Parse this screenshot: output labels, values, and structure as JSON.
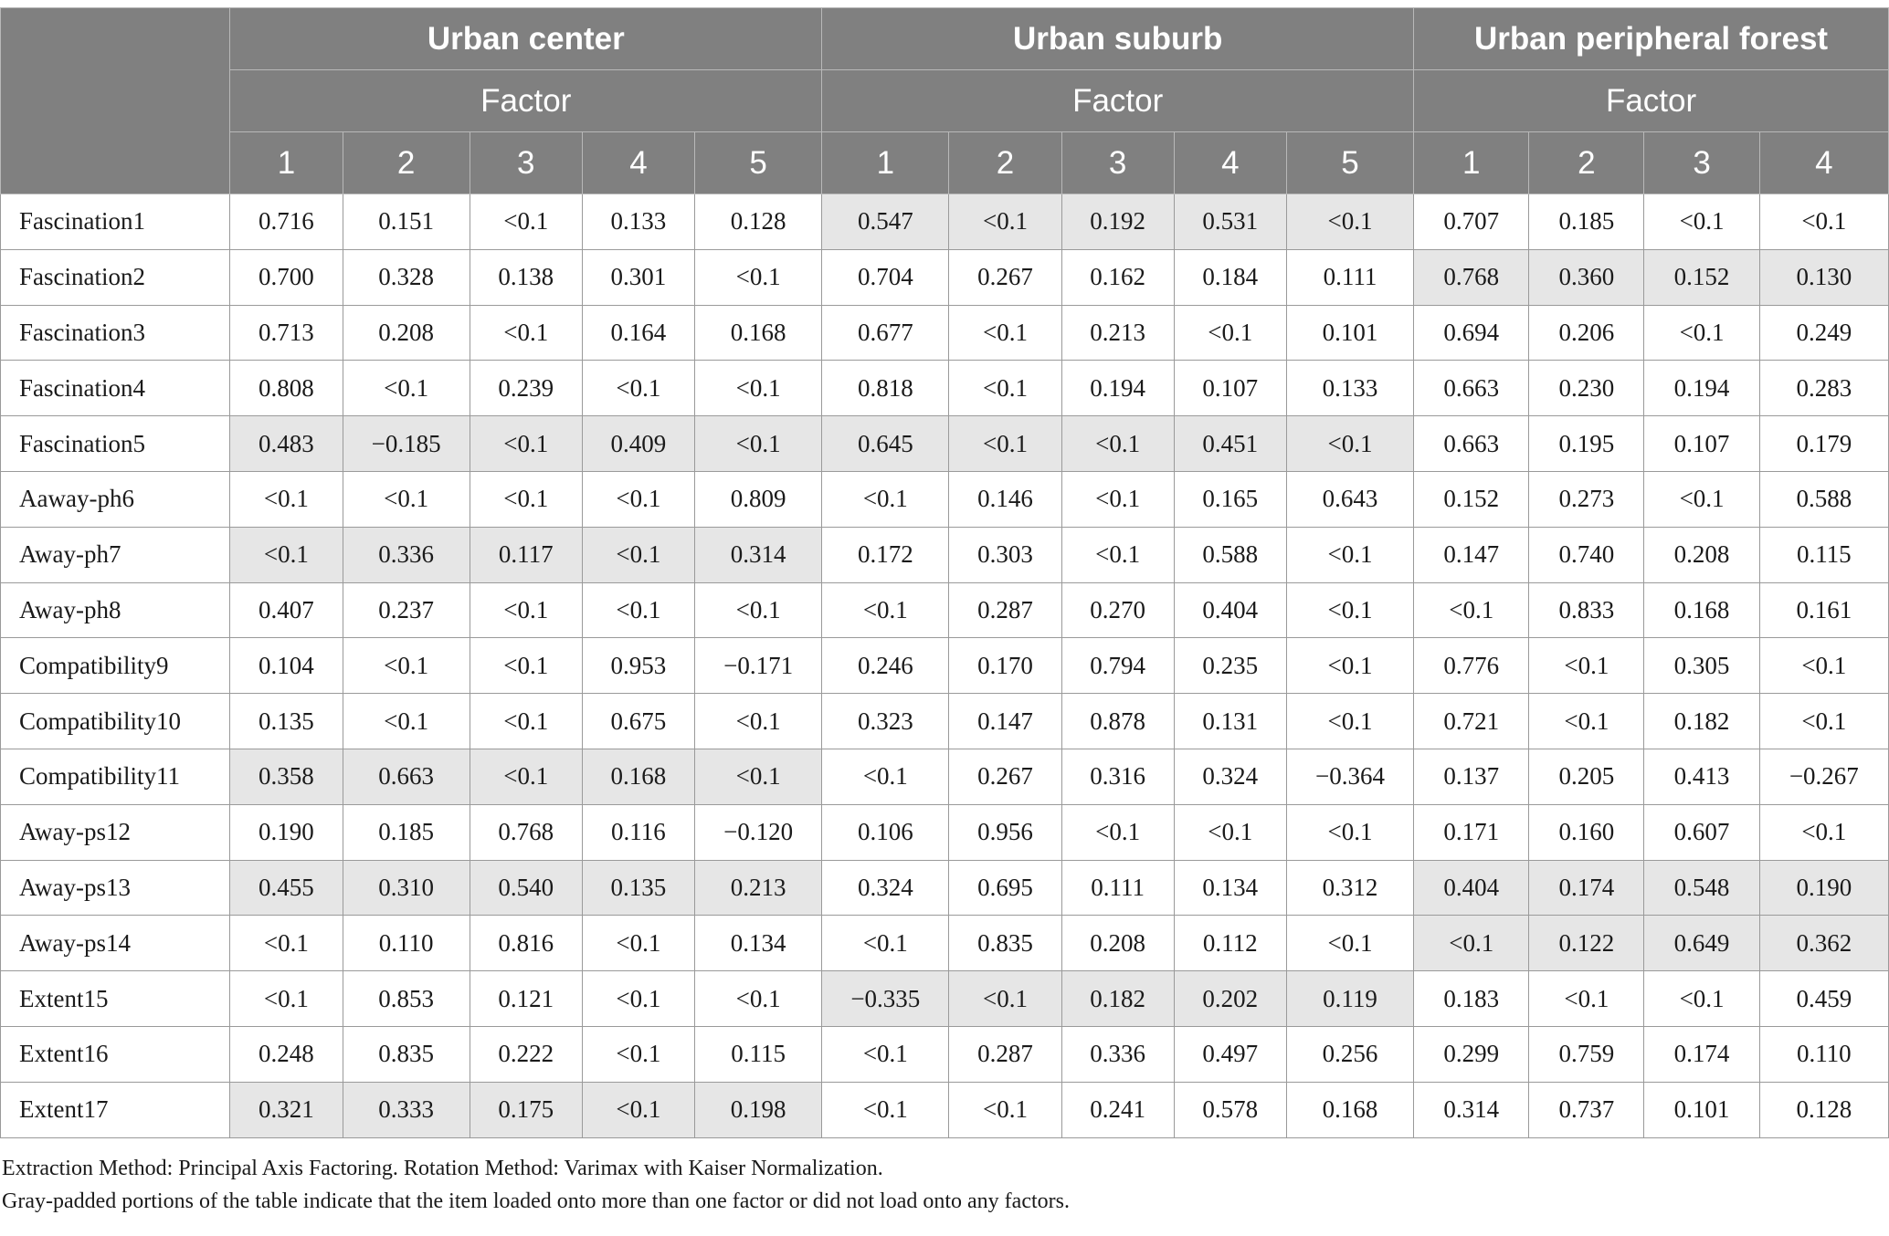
{
  "header": {
    "groups": [
      "Urban center",
      "Urban suburb",
      "Urban peripheral forest"
    ],
    "factor_label": "Factor",
    "factor_numbers": [
      [
        "1",
        "2",
        "3",
        "4",
        "5"
      ],
      [
        "1",
        "2",
        "3",
        "4",
        "5"
      ],
      [
        "1",
        "2",
        "3",
        "4"
      ]
    ]
  },
  "rows": [
    {
      "label": "Fascination1",
      "values": [
        "0.716",
        "0.151",
        "<0.1",
        "0.133",
        "0.128",
        "0.547",
        "<0.1",
        "0.192",
        "0.531",
        "<0.1",
        "0.707",
        "0.185",
        "<0.1",
        "<0.1"
      ],
      "shaded": [
        false,
        false,
        false,
        false,
        false,
        true,
        true,
        true,
        true,
        true,
        false,
        false,
        false,
        false
      ]
    },
    {
      "label": "Fascination2",
      "values": [
        "0.700",
        "0.328",
        "0.138",
        "0.301",
        "<0.1",
        "0.704",
        "0.267",
        "0.162",
        "0.184",
        "0.111",
        "0.768",
        "0.360",
        "0.152",
        "0.130"
      ],
      "shaded": [
        false,
        false,
        false,
        false,
        false,
        false,
        false,
        false,
        false,
        false,
        true,
        true,
        true,
        true
      ]
    },
    {
      "label": "Fascination3",
      "values": [
        "0.713",
        "0.208",
        "<0.1",
        "0.164",
        "0.168",
        "0.677",
        "<0.1",
        "0.213",
        "<0.1",
        "0.101",
        "0.694",
        "0.206",
        "<0.1",
        "0.249"
      ],
      "shaded": [
        false,
        false,
        false,
        false,
        false,
        false,
        false,
        false,
        false,
        false,
        false,
        false,
        false,
        false
      ]
    },
    {
      "label": "Fascination4",
      "values": [
        "0.808",
        "<0.1",
        "0.239",
        "<0.1",
        "<0.1",
        "0.818",
        "<0.1",
        "0.194",
        "0.107",
        "0.133",
        "0.663",
        "0.230",
        "0.194",
        "0.283"
      ],
      "shaded": [
        false,
        false,
        false,
        false,
        false,
        false,
        false,
        false,
        false,
        false,
        false,
        false,
        false,
        false
      ]
    },
    {
      "label": "Fascination5",
      "values": [
        "0.483",
        "−0.185",
        "<0.1",
        "0.409",
        "<0.1",
        "0.645",
        "<0.1",
        "<0.1",
        "0.451",
        "<0.1",
        "0.663",
        "0.195",
        "0.107",
        "0.179"
      ],
      "shaded": [
        true,
        true,
        true,
        true,
        true,
        true,
        true,
        true,
        true,
        true,
        false,
        false,
        false,
        false
      ]
    },
    {
      "label": "Aaway-ph6",
      "values": [
        "<0.1",
        "<0.1",
        "<0.1",
        "<0.1",
        "0.809",
        "<0.1",
        "0.146",
        "<0.1",
        "0.165",
        "0.643",
        "0.152",
        "0.273",
        "<0.1",
        "0.588"
      ],
      "shaded": [
        false,
        false,
        false,
        false,
        false,
        false,
        false,
        false,
        false,
        false,
        false,
        false,
        false,
        false
      ]
    },
    {
      "label": "Away-ph7",
      "values": [
        "<0.1",
        "0.336",
        "0.117",
        "<0.1",
        "0.314",
        "0.172",
        "0.303",
        "<0.1",
        "0.588",
        "<0.1",
        "0.147",
        "0.740",
        "0.208",
        "0.115"
      ],
      "shaded": [
        true,
        true,
        true,
        true,
        true,
        false,
        false,
        false,
        false,
        false,
        false,
        false,
        false,
        false
      ]
    },
    {
      "label": "Away-ph8",
      "values": [
        "0.407",
        "0.237",
        "<0.1",
        "<0.1",
        "<0.1",
        "<0.1",
        "0.287",
        "0.270",
        "0.404",
        "<0.1",
        "<0.1",
        "0.833",
        "0.168",
        "0.161"
      ],
      "shaded": [
        false,
        false,
        false,
        false,
        false,
        false,
        false,
        false,
        false,
        false,
        false,
        false,
        false,
        false
      ]
    },
    {
      "label": "Compatibility9",
      "values": [
        "0.104",
        "<0.1",
        "<0.1",
        "0.953",
        "−0.171",
        "0.246",
        "0.170",
        "0.794",
        "0.235",
        "<0.1",
        "0.776",
        "<0.1",
        "0.305",
        "<0.1"
      ],
      "shaded": [
        false,
        false,
        false,
        false,
        false,
        false,
        false,
        false,
        false,
        false,
        false,
        false,
        false,
        false
      ]
    },
    {
      "label": "Compatibility10",
      "values": [
        "0.135",
        "<0.1",
        "<0.1",
        "0.675",
        "<0.1",
        "0.323",
        "0.147",
        "0.878",
        "0.131",
        "<0.1",
        "0.721",
        "<0.1",
        "0.182",
        "<0.1"
      ],
      "shaded": [
        false,
        false,
        false,
        false,
        false,
        false,
        false,
        false,
        false,
        false,
        false,
        false,
        false,
        false
      ]
    },
    {
      "label": "Compatibility11",
      "values": [
        "0.358",
        "0.663",
        "<0.1",
        "0.168",
        "<0.1",
        "<0.1",
        "0.267",
        "0.316",
        "0.324",
        "−0.364",
        "0.137",
        "0.205",
        "0.413",
        "−0.267"
      ],
      "shaded": [
        true,
        true,
        true,
        true,
        true,
        false,
        false,
        false,
        false,
        false,
        false,
        false,
        false,
        false
      ]
    },
    {
      "label": "Away-ps12",
      "values": [
        "0.190",
        "0.185",
        "0.768",
        "0.116",
        "−0.120",
        "0.106",
        "0.956",
        "<0.1",
        "<0.1",
        "<0.1",
        "0.171",
        "0.160",
        "0.607",
        "<0.1"
      ],
      "shaded": [
        false,
        false,
        false,
        false,
        false,
        false,
        false,
        false,
        false,
        false,
        false,
        false,
        false,
        false
      ]
    },
    {
      "label": "Away-ps13",
      "values": [
        "0.455",
        "0.310",
        "0.540",
        "0.135",
        "0.213",
        "0.324",
        "0.695",
        "0.111",
        "0.134",
        "0.312",
        "0.404",
        "0.174",
        "0.548",
        "0.190"
      ],
      "shaded": [
        true,
        true,
        true,
        true,
        true,
        false,
        false,
        false,
        false,
        false,
        true,
        true,
        true,
        true
      ]
    },
    {
      "label": "Away-ps14",
      "values": [
        "<0.1",
        "0.110",
        "0.816",
        "<0.1",
        "0.134",
        "<0.1",
        "0.835",
        "0.208",
        "0.112",
        "<0.1",
        "<0.1",
        "0.122",
        "0.649",
        "0.362"
      ],
      "shaded": [
        false,
        false,
        false,
        false,
        false,
        false,
        false,
        false,
        false,
        false,
        true,
        true,
        true,
        true
      ]
    },
    {
      "label": "Extent15",
      "values": [
        "<0.1",
        "0.853",
        "0.121",
        "<0.1",
        "<0.1",
        "−0.335",
        "<0.1",
        "0.182",
        "0.202",
        "0.119",
        "0.183",
        "<0.1",
        "<0.1",
        "0.459"
      ],
      "shaded": [
        false,
        false,
        false,
        false,
        false,
        true,
        true,
        true,
        true,
        true,
        false,
        false,
        false,
        false
      ]
    },
    {
      "label": "Extent16",
      "values": [
        "0.248",
        "0.835",
        "0.222",
        "<0.1",
        "0.115",
        "<0.1",
        "0.287",
        "0.336",
        "0.497",
        "0.256",
        "0.299",
        "0.759",
        "0.174",
        "0.110"
      ],
      "shaded": [
        false,
        false,
        false,
        false,
        false,
        false,
        false,
        false,
        false,
        false,
        false,
        false,
        false,
        false
      ]
    },
    {
      "label": "Extent17",
      "values": [
        "0.321",
        "0.333",
        "0.175",
        "<0.1",
        "0.198",
        "<0.1",
        "<0.1",
        "0.241",
        "0.578",
        "0.168",
        "0.314",
        "0.737",
        "0.101",
        "0.128"
      ],
      "shaded": [
        true,
        true,
        true,
        true,
        true,
        false,
        false,
        false,
        false,
        false,
        false,
        false,
        false,
        false
      ]
    }
  ],
  "notes": [
    "Extraction Method: Principal Axis Factoring. Rotation Method: Varimax with Kaiser Normalization.",
    "Gray-padded portions of the table indicate that the item loaded onto more than one factor or did not load onto any factors."
  ],
  "colors": {
    "header_bg": "#808080",
    "header_text": "#ffffff",
    "shaded_cell": "#e6e6e6"
  }
}
